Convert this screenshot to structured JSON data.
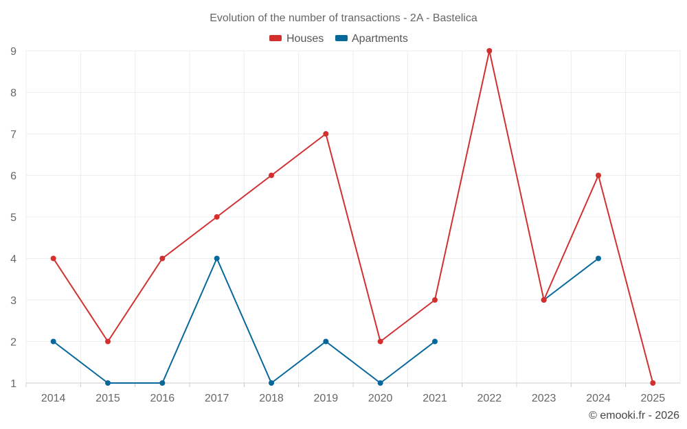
{
  "chart_data": {
    "type": "line",
    "title": "Evolution of the number of transactions - 2A - Bastelica",
    "categories": [
      "2014",
      "2015",
      "2016",
      "2017",
      "2018",
      "2019",
      "2020",
      "2021",
      "2022",
      "2023",
      "2024",
      "2025"
    ],
    "series": [
      {
        "name": "Houses",
        "color": "#d32f2f",
        "values": [
          4,
          2,
          4,
          5,
          6,
          7,
          2,
          3,
          9,
          3,
          6,
          1
        ]
      },
      {
        "name": "Apartments",
        "color": "#06679b",
        "values": [
          2,
          1,
          1,
          4,
          1,
          2,
          1,
          2,
          null,
          3,
          4,
          null
        ]
      }
    ],
    "ylim": [
      1,
      9
    ],
    "yticks": [
      "1",
      "2",
      "3",
      "4",
      "5",
      "6",
      "7",
      "8",
      "9"
    ],
    "xlabel": "",
    "ylabel": "",
    "grid": true,
    "legend_position": "top-center"
  },
  "credit": "© emooki.fr - 2026"
}
